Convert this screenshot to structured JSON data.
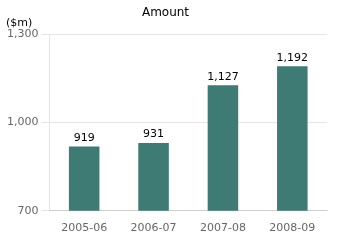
{
  "chart_data": {
    "type": "bar",
    "title": "Amount",
    "categories": [
      "2005-06",
      "2006-07",
      "2007-08",
      "2008-09"
    ],
    "values": [
      919,
      931,
      1127,
      1192
    ],
    "value_labels": [
      "919",
      "931",
      "1,127",
      "1,192"
    ],
    "data_labels": true,
    "color": "#3d7b74",
    "ylim": [
      700,
      1300
    ],
    "yticks": [
      700,
      {
        "value": 1000,
        "label": "1,000"
      },
      {
        "value": 1300,
        "label": "1,300"
      }
    ],
    "grid": true,
    "annotations": [
      "($m)"
    ]
  }
}
